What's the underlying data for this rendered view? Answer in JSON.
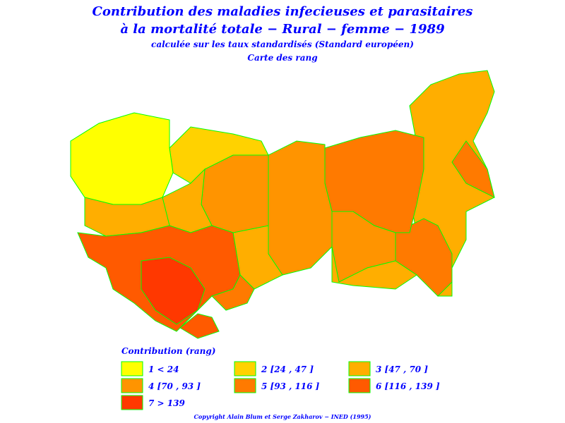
{
  "header": {
    "title_line1": "Contribution des maladies infecieuses et parasitaires",
    "title_line2": "à la mortalité totale − Rural − femme − 1989",
    "subtitle": "calculée sur les taux standardisés (Standard européen)",
    "caption": "Carte des rang"
  },
  "legend": {
    "title": "Contribution (rang)",
    "items": [
      {
        "label": "1  <  24",
        "color": "#ffff00"
      },
      {
        "label": "2 [24 , 47 ]",
        "color": "#ffd200"
      },
      {
        "label": "3 [47 , 70 ]",
        "color": "#ffae00"
      },
      {
        "label": "4 [70 , 93 ]",
        "color": "#ff9400"
      },
      {
        "label": "5 [93 , 116 ]",
        "color": "#ff7a00"
      },
      {
        "label": "6 [116 , 139 ]",
        "color": "#ff5a00"
      },
      {
        "label": "7  >  139",
        "color": "#ff3800"
      }
    ]
  },
  "footer": {
    "copyright": "Copyright Alain Blum et Serge Zakharov − INED (1995)"
  }
}
